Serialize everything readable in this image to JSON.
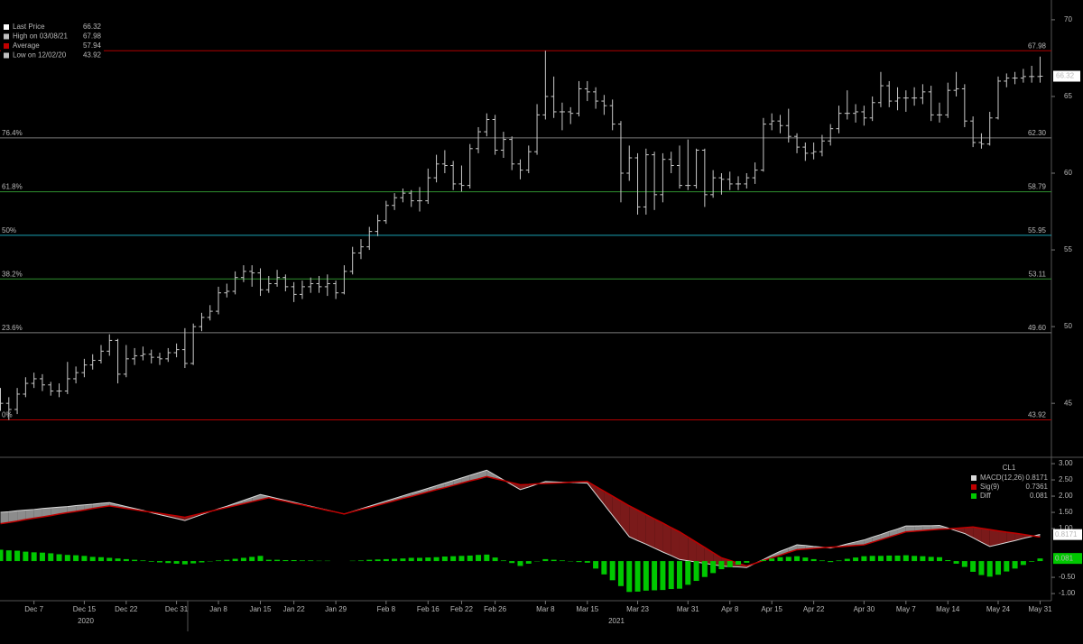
{
  "chart_data": [
    {
      "type": "ohlc",
      "color": "#c8c8c8",
      "open": [
        45.5,
        45.0,
        44.6,
        45.6,
        46.3,
        46.6,
        46.2,
        45.8,
        45.8,
        46.6,
        47.0,
        47.5,
        47.8,
        48.4,
        49.1,
        46.9,
        47.9,
        48.1,
        48.2,
        48.0,
        47.9,
        48.3,
        48.5,
        47.6,
        50.0,
        50.6,
        51.0,
        52.2,
        52.3,
        53.2,
        53.6,
        53.5,
        52.4,
        52.8,
        53.2,
        52.6,
        52.1,
        52.6,
        52.8,
        52.6,
        52.8,
        52.2,
        53.6,
        54.8,
        55.2,
        56.2,
        56.9,
        57.9,
        58.4,
        58.7,
        58.2,
        58.2,
        59.7,
        60.6,
        60.5,
        59.3,
        59.2,
        61.6,
        62.7,
        63.5,
        61.5,
        62.2,
        60.6,
        60.2,
        61.4,
        63.8,
        65.0,
        64.0,
        64.0,
        63.9,
        65.5,
        65.3,
        64.7,
        64.4,
        63.2,
        60.0,
        61.0,
        57.8,
        61.2,
        58.6,
        60.9,
        60.5,
        59.2,
        59.2,
        61.5,
        58.6,
        59.7,
        59.6,
        59.3,
        59.3,
        59.7,
        60.2,
        63.2,
        63.4,
        63.1,
        62.4,
        61.7,
        61.3,
        61.4,
        62.1,
        62.9,
        63.9,
        63.9,
        64.0,
        63.6,
        64.6,
        65.7,
        64.7,
        64.9,
        64.9,
        64.9,
        65.3,
        63.8,
        63.8,
        65.4,
        65.5,
        63.4,
        62.0,
        61.9,
        63.6,
        66.0,
        66.2,
        66.2,
        66.3,
        66.3
      ],
      "high": [
        46.0,
        45.4,
        46.0,
        46.7,
        47.0,
        46.9,
        46.4,
        46.3,
        47.7,
        47.4,
        47.9,
        48.2,
        48.8,
        49.5,
        49.2,
        48.8,
        48.6,
        48.7,
        48.5,
        48.3,
        48.6,
        48.9,
        49.9,
        50.2,
        50.9,
        51.4,
        52.6,
        52.8,
        53.6,
        54.0,
        54.0,
        53.8,
        53.3,
        53.7,
        53.4,
        52.9,
        53.0,
        53.2,
        53.3,
        53.4,
        53.0,
        54.0,
        55.2,
        55.7,
        56.5,
        57.3,
        58.2,
        58.7,
        59.0,
        58.9,
        59.1,
        60.3,
        61.2,
        61.5,
        60.8,
        60.5,
        61.9,
        63.0,
        63.9,
        63.8,
        62.7,
        62.4,
        60.9,
        61.8,
        64.5,
        67.98,
        66.3,
        64.6,
        64.3,
        66.0,
        66.0,
        65.6,
        65.1,
        64.8,
        63.4,
        61.8,
        61.3,
        61.6,
        61.4,
        61.3,
        61.4,
        61.8,
        62.2,
        61.6,
        61.6,
        60.2,
        60.0,
        60.1,
        59.8,
        60.0,
        60.7,
        63.6,
        63.9,
        63.8,
        64.2,
        62.6,
        62.0,
        62.0,
        62.5,
        63.2,
        64.4,
        65.4,
        64.5,
        64.4,
        65.0,
        66.6,
        66.0,
        65.6,
        65.4,
        65.6,
        65.8,
        65.7,
        64.6,
        65.9,
        66.6,
        65.8,
        63.7,
        62.6,
        64.0,
        66.3,
        66.5,
        66.6,
        66.8,
        67.0,
        67.6
      ],
      "low": [
        44.5,
        43.92,
        44.3,
        45.4,
        46.0,
        45.8,
        45.5,
        45.4,
        45.6,
        46.3,
        46.7,
        47.2,
        47.6,
        48.1,
        46.3,
        46.7,
        47.5,
        47.8,
        47.6,
        47.5,
        47.7,
        48.0,
        47.3,
        47.5,
        49.7,
        50.4,
        50.8,
        51.9,
        52.1,
        52.9,
        52.6,
        52.0,
        52.2,
        52.6,
        52.3,
        51.6,
        51.8,
        52.2,
        52.2,
        52.0,
        51.8,
        52.1,
        53.4,
        54.4,
        55.0,
        55.9,
        56.7,
        57.6,
        58.1,
        57.8,
        57.5,
        58.0,
        59.4,
        60.0,
        58.9,
        58.8,
        59.0,
        61.3,
        62.4,
        61.2,
        61.0,
        60.2,
        59.6,
        60.0,
        61.2,
        63.5,
        63.6,
        62.8,
        63.2,
        63.7,
        64.7,
        64.2,
        63.8,
        62.8,
        58.1,
        59.5,
        57.3,
        57.3,
        57.6,
        58.1,
        60.0,
        59.0,
        58.9,
        59.0,
        57.8,
        58.4,
        58.6,
        58.9,
        58.9,
        59.0,
        59.3,
        60.1,
        62.8,
        62.6,
        62.0,
        61.3,
        60.8,
        60.9,
        61.1,
        61.8,
        62.6,
        63.5,
        63.3,
        63.1,
        63.4,
        64.3,
        64.3,
        64.1,
        64.0,
        64.4,
        64.5,
        63.4,
        63.3,
        63.6,
        65.0,
        63.0,
        61.7,
        61.6,
        61.8,
        63.5,
        65.6,
        65.8,
        65.9,
        65.9,
        65.9
      ],
      "close": [
        45.0,
        44.6,
        45.6,
        46.3,
        46.6,
        46.2,
        45.8,
        45.8,
        46.6,
        47.0,
        47.5,
        47.8,
        48.4,
        49.1,
        46.9,
        47.9,
        48.1,
        48.2,
        48.0,
        47.9,
        48.3,
        48.5,
        47.6,
        50.0,
        50.6,
        51.0,
        52.2,
        52.3,
        53.2,
        53.6,
        53.5,
        52.4,
        52.8,
        53.2,
        52.6,
        52.1,
        52.6,
        52.8,
        52.6,
        52.8,
        52.2,
        53.6,
        54.8,
        55.2,
        56.2,
        56.9,
        57.9,
        58.4,
        58.7,
        58.2,
        58.2,
        59.7,
        60.6,
        60.5,
        59.3,
        59.2,
        61.6,
        62.7,
        63.5,
        61.5,
        62.2,
        60.6,
        60.2,
        61.4,
        63.8,
        65.0,
        64.0,
        64.0,
        63.9,
        65.5,
        65.3,
        64.7,
        64.4,
        63.2,
        60.0,
        61.0,
        57.8,
        61.2,
        58.6,
        60.9,
        60.5,
        59.2,
        59.2,
        61.5,
        58.6,
        59.7,
        59.6,
        59.3,
        59.3,
        59.7,
        60.2,
        63.2,
        63.4,
        63.1,
        62.4,
        61.7,
        61.3,
        61.4,
        62.1,
        62.9,
        63.9,
        63.9,
        64.0,
        63.6,
        64.6,
        65.7,
        64.7,
        64.9,
        64.9,
        64.9,
        65.3,
        63.8,
        63.8,
        65.4,
        65.5,
        63.4,
        62.0,
        61.9,
        63.6,
        66.0,
        66.2,
        66.2,
        66.3,
        66.3,
        66.32
      ],
      "ylim": [
        41.6,
        70.7
      ],
      "yticks": [
        45,
        50,
        55,
        60,
        65,
        70
      ],
      "levels": [
        {
          "price": 67.98,
          "color": "#b00000"
        },
        {
          "price": {
            "value": 62.3,
            "label": "62.30"
          },
          "ratio": "76.4%",
          "color": "#7a7a7a"
        },
        {
          "price": 58.79,
          "ratio": "61.8%",
          "color": "#2f8f2f"
        },
        {
          "price": 55.95,
          "ratio": "50%",
          "color": "#1aa3b5"
        },
        {
          "price": 53.11,
          "ratio": "38.2%",
          "color": "#2f8f2f"
        },
        {
          "price": {
            "value": 49.6,
            "label": "49.60"
          },
          "ratio": "23.6%",
          "color": "#7a7a7a"
        },
        {
          "price": 43.92,
          "ratio": "0%",
          "color": "#b00000"
        }
      ],
      "stats": [
        {
          "label": "Last Price",
          "value": 66.32,
          "color": "#ffffff"
        },
        {
          "label": "High on 03/08/21",
          "value": 67.98,
          "color": "#c0c0c0"
        },
        {
          "label": "Average",
          "value": 57.94,
          "color": "#c00000"
        },
        {
          "label": "Low on 12/02/20",
          "value": 43.92,
          "color": "#c0c0c0"
        }
      ]
    },
    {
      "type": "macd",
      "title": "CL1",
      "categories": [
        null,
        null,
        null,
        null,
        "Dec 7",
        null,
        null,
        null,
        null,
        null,
        "Dec 15",
        null,
        null,
        null,
        null,
        "Dec 22",
        null,
        null,
        null,
        null,
        null,
        "Dec 31",
        null,
        null,
        null,
        null,
        "Jan 8",
        null,
        null,
        null,
        null,
        "Jan 15",
        null,
        null,
        null,
        "Jan 22",
        null,
        null,
        null,
        null,
        "Jan 29",
        null,
        null,
        null,
        null,
        null,
        "Feb 8",
        null,
        null,
        null,
        null,
        "Feb 16",
        null,
        null,
        null,
        "Feb 22",
        null,
        null,
        null,
        "Feb 26",
        null,
        null,
        null,
        null,
        null,
        "Mar 8",
        null,
        null,
        null,
        null,
        "Mar 15",
        null,
        null,
        null,
        null,
        null,
        "Mar 23",
        null,
        null,
        null,
        null,
        null,
        "Mar 31",
        null,
        null,
        null,
        null,
        "Apr 8",
        null,
        null,
        null,
        null,
        "Apr 15",
        null,
        null,
        null,
        null,
        "Apr 22",
        null,
        null,
        null,
        null,
        null,
        "Apr 30",
        null,
        null,
        null,
        null,
        "May 7",
        null,
        null,
        null,
        null,
        "May 14",
        null,
        null,
        null,
        null,
        null,
        "May 24",
        null,
        null,
        null,
        null,
        "May 31"
      ],
      "years": [
        "2020",
        "2021"
      ],
      "series": [
        {
          "name": "MACD(12,26)",
          "color": "#d9d9d9",
          "last": 0.8171,
          "values": [
            1.5,
            1.52,
            1.55,
            1.57,
            1.59,
            1.62,
            1.64,
            1.66,
            1.68,
            1.71,
            1.73,
            1.75,
            1.78,
            1.8,
            1.74,
            1.68,
            1.62,
            1.56,
            1.49,
            1.43,
            1.37,
            1.31,
            1.25,
            1.34,
            1.43,
            1.52,
            1.61,
            1.69,
            1.78,
            1.87,
            1.96,
            2.05,
            1.99,
            1.93,
            1.87,
            1.81,
            1.75,
            1.69,
            1.63,
            1.57,
            1.51,
            1.45,
            1.53,
            1.61,
            1.69,
            1.77,
            1.85,
            1.93,
            2.01,
            2.09,
            2.16,
            2.24,
            2.32,
            2.4,
            2.48,
            2.56,
            2.64,
            2.72,
            2.8,
            2.65,
            2.5,
            2.35,
            2.2,
            2.28,
            2.37,
            2.45,
            2.44,
            2.43,
            2.42,
            2.41,
            2.4,
            2.07,
            1.74,
            1.41,
            1.08,
            0.75,
            0.63,
            0.52,
            0.4,
            0.28,
            0.17,
            0.05,
            0.01,
            -0.03,
            -0.07,
            -0.11,
            -0.15,
            -0.17,
            -0.18,
            -0.2,
            -0.07,
            0.05,
            0.18,
            0.3,
            0.4,
            0.5,
            0.48,
            0.45,
            0.43,
            0.4,
            0.46,
            0.53,
            0.59,
            0.65,
            0.74,
            0.82,
            0.91,
            0.99,
            1.08,
            1.08,
            1.09,
            1.09,
            1.1,
            1.02,
            0.93,
            0.85,
            0.72,
            0.58,
            0.45,
            0.51,
            0.57,
            0.63,
            0.7,
            0.76,
            0.82
          ]
        },
        {
          "name": "Sig(9)",
          "color": "#c00000",
          "last": 0.7361,
          "values": [
            1.15,
            1.19,
            1.23,
            1.28,
            1.32,
            1.36,
            1.4,
            1.45,
            1.49,
            1.53,
            1.57,
            1.62,
            1.66,
            1.7,
            1.66,
            1.62,
            1.58,
            1.54,
            1.51,
            1.47,
            1.43,
            1.39,
            1.35,
            1.41,
            1.47,
            1.53,
            1.59,
            1.65,
            1.71,
            1.77,
            1.83,
            1.89,
            1.95,
            1.89,
            1.84,
            1.78,
            1.73,
            1.67,
            1.62,
            1.56,
            1.51,
            1.45,
            1.52,
            1.59,
            1.65,
            1.72,
            1.79,
            1.86,
            1.93,
            1.99,
            2.06,
            2.13,
            2.2,
            2.26,
            2.33,
            2.4,
            2.47,
            2.53,
            2.6,
            2.54,
            2.48,
            2.41,
            2.35,
            2.36,
            2.38,
            2.39,
            2.4,
            2.41,
            2.43,
            2.44,
            2.45,
            2.3,
            2.15,
            2.0,
            1.85,
            1.7,
            1.57,
            1.43,
            1.3,
            1.17,
            1.03,
            0.9,
            0.74,
            0.58,
            0.42,
            0.26,
            0.1,
            0.02,
            -0.07,
            -0.15,
            -0.07,
            0.02,
            0.1,
            0.18,
            0.27,
            0.35,
            0.37,
            0.39,
            0.41,
            0.43,
            0.44,
            0.46,
            0.48,
            0.5,
            0.58,
            0.66,
            0.74,
            0.82,
            0.9,
            0.92,
            0.94,
            0.96,
            0.98,
            0.99,
            1.01,
            1.03,
            1.05,
            1.01,
            0.97,
            0.93,
            0.89,
            0.86,
            0.82,
            0.78,
            0.74
          ]
        },
        {
          "name": "Diff",
          "color": "#00c800",
          "last": 0.081,
          "values": [
            0.35,
            0.33,
            0.32,
            0.29,
            0.27,
            0.26,
            0.24,
            0.21,
            0.19,
            0.18,
            0.16,
            0.13,
            0.12,
            0.1,
            0.08,
            0.06,
            0.04,
            0.02,
            -0.02,
            -0.04,
            -0.06,
            -0.08,
            -0.1,
            -0.07,
            -0.04,
            -0.01,
            0.02,
            0.04,
            0.07,
            0.1,
            0.13,
            0.16,
            0.04,
            0.04,
            0.03,
            0.03,
            0.02,
            0.02,
            0.01,
            0.01,
            0,
            0,
            0.01,
            0.02,
            0.04,
            0.05,
            0.06,
            0.07,
            0.08,
            0.1,
            0.1,
            0.11,
            0.12,
            0.14,
            0.15,
            0.16,
            0.17,
            0.19,
            0.2,
            0.11,
            0.02,
            -0.06,
            -0.15,
            -0.08,
            -0.01,
            0.06,
            0.04,
            0.02,
            -0.01,
            -0.03,
            -0.05,
            -0.23,
            -0.41,
            -0.59,
            -0.77,
            -0.95,
            -0.94,
            -0.91,
            -0.9,
            -0.89,
            -0.86,
            -0.85,
            -0.73,
            -0.61,
            -0.49,
            -0.37,
            -0.25,
            -0.19,
            -0.11,
            -0.05,
            0,
            0.03,
            0.08,
            0.12,
            0.13,
            0.15,
            0.11,
            0.06,
            0.02,
            -0.03,
            0.02,
            0.07,
            0.11,
            0.15,
            0.16,
            0.16,
            0.17,
            0.17,
            0.18,
            0.16,
            0.15,
            0.13,
            0.12,
            0.03,
            -0.08,
            -0.18,
            -0.33,
            -0.43,
            -0.48,
            -0.42,
            -0.32,
            -0.23,
            -0.12,
            -0.02,
            0.081
          ]
        }
      ],
      "ylim": [
        -1.22,
        3.14
      ],
      "yticks": [
        {
          "value": 3,
          "label": "3.00"
        },
        {
          "value": 2.5,
          "label": "2.50"
        },
        {
          "value": 2,
          "label": "2.00"
        },
        {
          "value": 1.5,
          "label": "1.50"
        },
        {
          "value": 1,
          "label": "1.00"
        },
        {
          "value": -0.5,
          "label": "-0.50"
        },
        {
          "value": -1,
          "label": "-1.00"
        }
      ]
    }
  ]
}
